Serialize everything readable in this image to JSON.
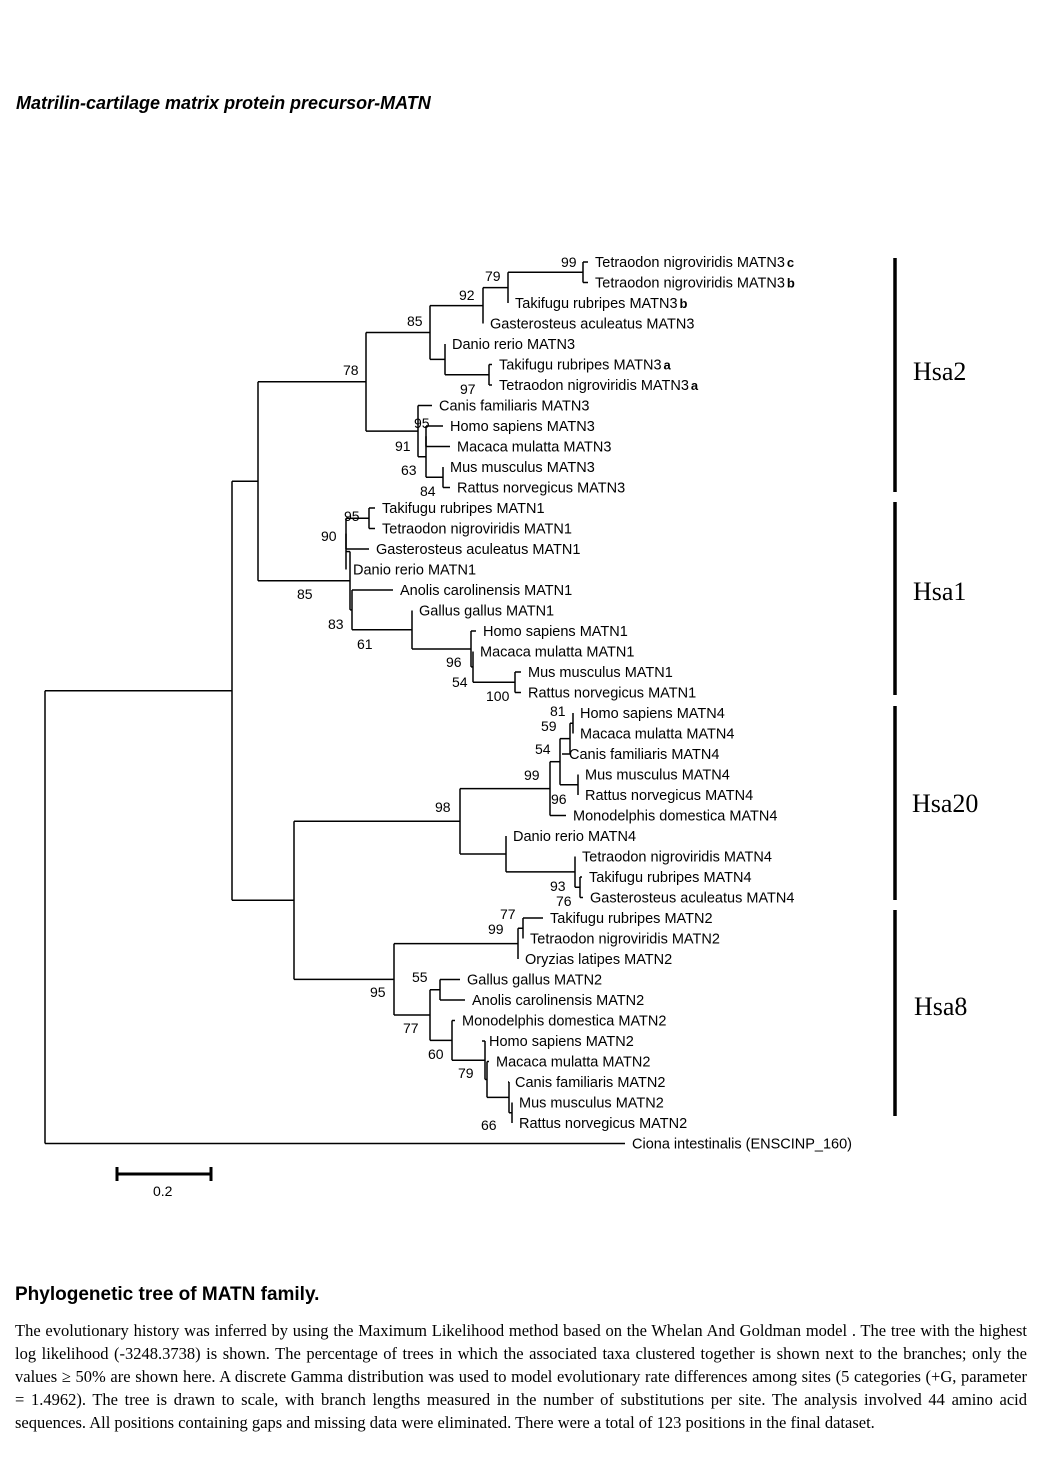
{
  "page_title": "Matrilin-cartilage matrix protein precursor-MATN",
  "taxa": [
    {
      "name": "Tetraodon nigroviridis MATN3",
      "suffix": "c"
    },
    {
      "name": "Tetraodon nigroviridis MATN3",
      "suffix": "b"
    },
    {
      "name": "Takifugu rubripes MATN3",
      "suffix": "b"
    },
    {
      "name": "Gasterosteus aculeatus MATN3",
      "suffix": ""
    },
    {
      "name": "Danio rerio MATN3",
      "suffix": ""
    },
    {
      "name": "Takifugu rubripes MATN3",
      "suffix": "a"
    },
    {
      "name": "Tetraodon nigroviridis MATN3",
      "suffix": "a"
    },
    {
      "name": "Canis familiaris MATN3",
      "suffix": ""
    },
    {
      "name": "Homo sapiens MATN3",
      "suffix": ""
    },
    {
      "name": "Macaca mulatta MATN3",
      "suffix": ""
    },
    {
      "name": "Mus musculus MATN3",
      "suffix": ""
    },
    {
      "name": "Rattus norvegicus MATN3",
      "suffix": ""
    },
    {
      "name": "Takifugu rubripes MATN1",
      "suffix": ""
    },
    {
      "name": "Tetraodon nigroviridis MATN1",
      "suffix": ""
    },
    {
      "name": "Gasterosteus aculeatus MATN1",
      "suffix": ""
    },
    {
      "name": "Danio rerio MATN1",
      "suffix": ""
    },
    {
      "name": "Anolis carolinensis MATN1",
      "suffix": ""
    },
    {
      "name": "Gallus gallus MATN1",
      "suffix": ""
    },
    {
      "name": "Homo sapiens MATN1",
      "suffix": ""
    },
    {
      "name": "Macaca mulatta MATN1",
      "suffix": ""
    },
    {
      "name": "Mus musculus MATN1",
      "suffix": ""
    },
    {
      "name": "Rattus norvegicus MATN1",
      "suffix": ""
    },
    {
      "name": "Homo sapiens MATN4",
      "suffix": ""
    },
    {
      "name": "Macaca mulatta MATN4",
      "suffix": ""
    },
    {
      "name": "Canis familiaris MATN4",
      "suffix": ""
    },
    {
      "name": "Mus musculus MATN4",
      "suffix": ""
    },
    {
      "name": "Rattus norvegicus MATN4",
      "suffix": ""
    },
    {
      "name": "Monodelphis domestica MATN4",
      "suffix": ""
    },
    {
      "name": "Danio rerio MATN4",
      "suffix": ""
    },
    {
      "name": "Tetraodon nigroviridis MATN4",
      "suffix": ""
    },
    {
      "name": "Takifugu rubripes MATN4",
      "suffix": ""
    },
    {
      "name": "Gasterosteus aculeatus MATN4",
      "suffix": ""
    },
    {
      "name": "Takifugu rubripes MATN2",
      "suffix": ""
    },
    {
      "name": "Tetraodon nigroviridis MATN2",
      "suffix": ""
    },
    {
      "name": "Oryzias latipes MATN2",
      "suffix": ""
    },
    {
      "name": "Gallus gallus MATN2",
      "suffix": ""
    },
    {
      "name": "Anolis carolinensis MATN2",
      "suffix": ""
    },
    {
      "name": "Monodelphis domestica MATN2",
      "suffix": ""
    },
    {
      "name": "Homo sapiens MATN2",
      "suffix": ""
    },
    {
      "name": "Macaca mulatta MATN2",
      "suffix": ""
    },
    {
      "name": "Canis familiaris MATN2",
      "suffix": ""
    },
    {
      "name": "Mus musculus MATN2",
      "suffix": ""
    },
    {
      "name": "Rattus norvegicus MATN2",
      "suffix": ""
    },
    {
      "name": "Ciona intestinalis (ENSCINP_160)",
      "suffix": ""
    }
  ],
  "bootstrap_values": [
    "99",
    "79",
    "92",
    "85",
    "97",
    "78",
    "95",
    "91",
    "63",
    "84",
    "95",
    "90",
    "85",
    "83",
    "61",
    "96",
    "54",
    "100",
    "81",
    "59",
    "54",
    "99",
    "96",
    "98",
    "93",
    "76",
    "77",
    "99",
    "55",
    "95",
    "77",
    "60",
    "79",
    "66"
  ],
  "groups": [
    "Hsa2",
    "Hsa1",
    "Hsa20",
    "Hsa8"
  ],
  "scale_bar_label": "0.2",
  "caption": {
    "title": "Phylogenetic tree of MATN family.",
    "body": "The evolutionary history was inferred by using the Maximum Likelihood method based on the Whelan And Goldman model . The tree with the highest log likelihood (-3248.3738) is shown. The percentage of trees in which the associated taxa clustered together is shown next to the branches; only the values ≥ 50% are shown here. A discrete Gamma distribution was used to model evolutionary rate differences among sites (5 categories (+G, parameter = 1.4962). The tree is drawn to scale, with branch lengths measured in the number of substitutions per site. The analysis involved 44 amino acid sequences. All positions containing gaps and missing data were eliminated. There were a total of 123 positions in the final dataset."
  }
}
